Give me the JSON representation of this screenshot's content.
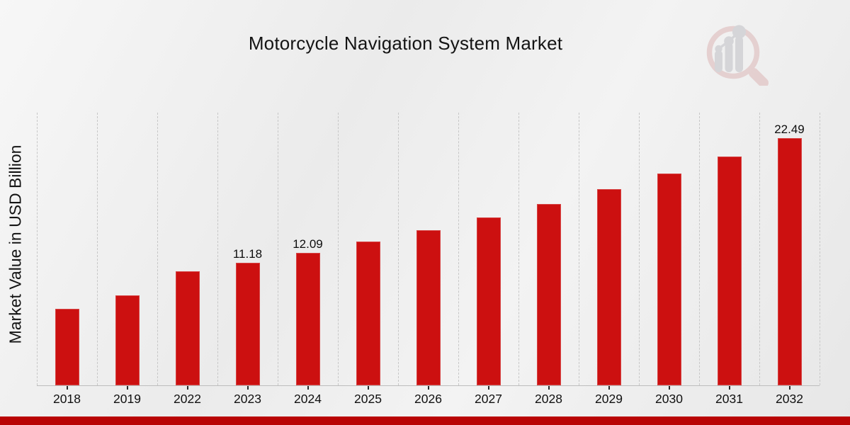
{
  "page": {
    "background_style": "light gray diagonal gradient",
    "footer_band_color": "#b90404",
    "watermark_icon": "mrfr-magnifier-barchart-logo"
  },
  "chart_data": {
    "type": "bar",
    "title": "Motorcycle Navigation System Market",
    "xlabel": "",
    "ylabel": "Market Value in USD Billion",
    "categories": [
      "2018",
      "2019",
      "2022",
      "2023",
      "2024",
      "2025",
      "2026",
      "2027",
      "2028",
      "2029",
      "2030",
      "2031",
      "2032"
    ],
    "values": [
      6.96,
      8.18,
      10.37,
      11.18,
      12.09,
      13.07,
      14.13,
      15.27,
      16.5,
      17.84,
      19.28,
      20.83,
      22.49
    ],
    "bar_labels": [
      "",
      "",
      "",
      "11.18",
      "12.09",
      "",
      "",
      "",
      "",
      "",
      "",
      "",
      "22.49"
    ],
    "bar_color": "#cc1010",
    "ylim": [
      0,
      24.9
    ],
    "y_ticks_visible": false,
    "grid": "vertical-dashed",
    "gridline_color": "#c7c7c7",
    "legend": "none"
  }
}
